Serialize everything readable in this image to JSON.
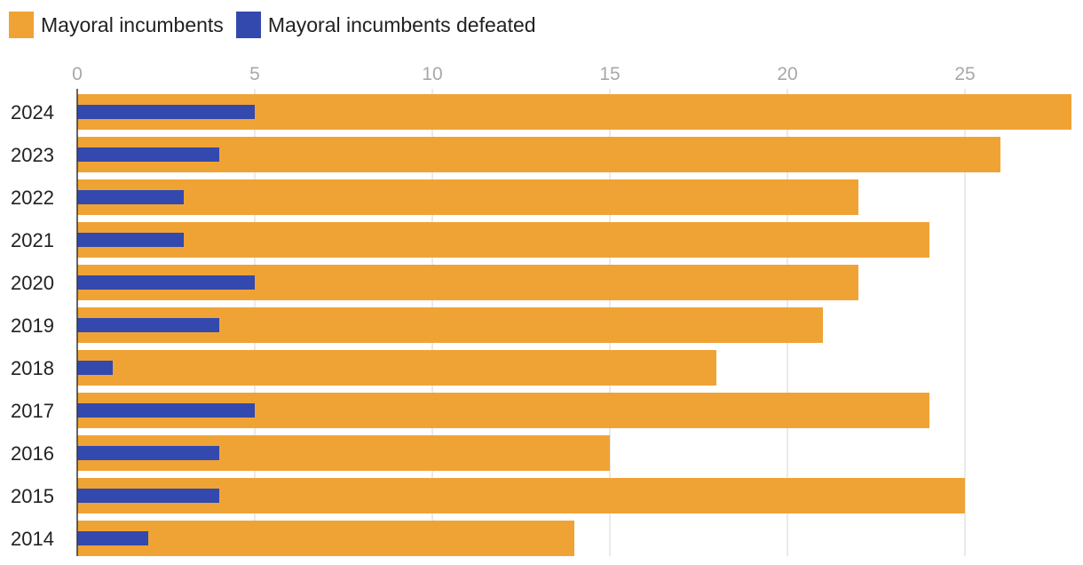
{
  "chart_data": {
    "type": "bar",
    "orientation": "horizontal",
    "categories": [
      "2024",
      "2023",
      "2022",
      "2021",
      "2020",
      "2019",
      "2018",
      "2017",
      "2016",
      "2015",
      "2014"
    ],
    "series": [
      {
        "name": "Mayoral incumbents",
        "color": "#f0a335",
        "values": [
          28,
          26,
          22,
          24,
          22,
          21,
          18,
          24,
          15,
          25,
          14
        ]
      },
      {
        "name": "Mayoral incumbents defeated",
        "color": "#3349ae",
        "values": [
          5,
          4,
          3,
          3,
          5,
          4,
          1,
          5,
          4,
          4,
          2
        ]
      }
    ],
    "xticks": [
      0,
      5,
      10,
      15,
      20,
      25
    ],
    "xlim": [
      0,
      28
    ],
    "grid": true,
    "legend_position": "top-left"
  }
}
